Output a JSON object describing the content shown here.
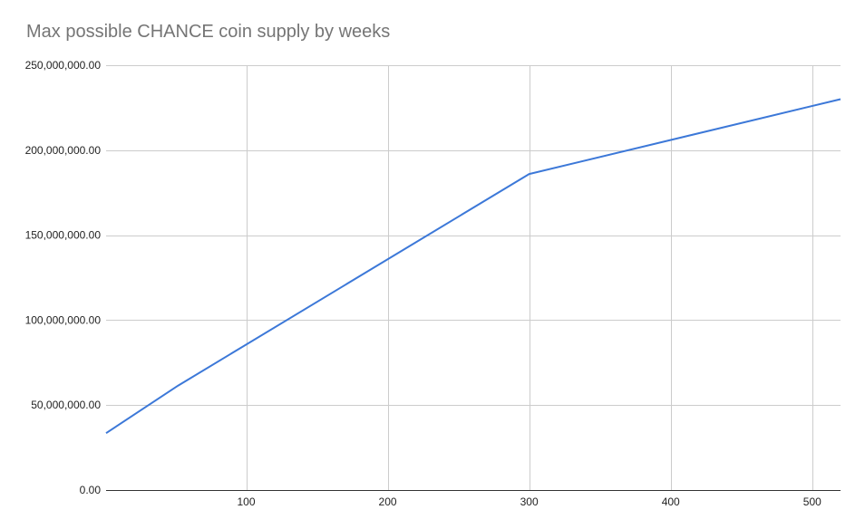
{
  "chart_data": {
    "type": "line",
    "title": "Max possible CHANCE coin supply by weeks",
    "xlabel": "",
    "ylabel": "",
    "xlim": [
      1,
      520
    ],
    "ylim": [
      0,
      250000000
    ],
    "x_ticks": [
      100,
      200,
      300,
      400,
      500
    ],
    "x_tick_labels": [
      "100",
      "200",
      "300",
      "400",
      "500"
    ],
    "y_ticks": [
      0,
      50000000,
      100000000,
      150000000,
      200000000,
      250000000
    ],
    "y_tick_labels": [
      "0.00",
      "50,000,000.00",
      "100,000,000.00",
      "150,000,000.00",
      "200,000,000.00",
      "250,000,000.00"
    ],
    "grid": true,
    "legend": "none",
    "series": [
      {
        "color": "#3c78d8",
        "x": [
          1,
          52,
          300,
          520
        ],
        "y": [
          33500000,
          61500000,
          186000000,
          230000000
        ]
      }
    ]
  }
}
